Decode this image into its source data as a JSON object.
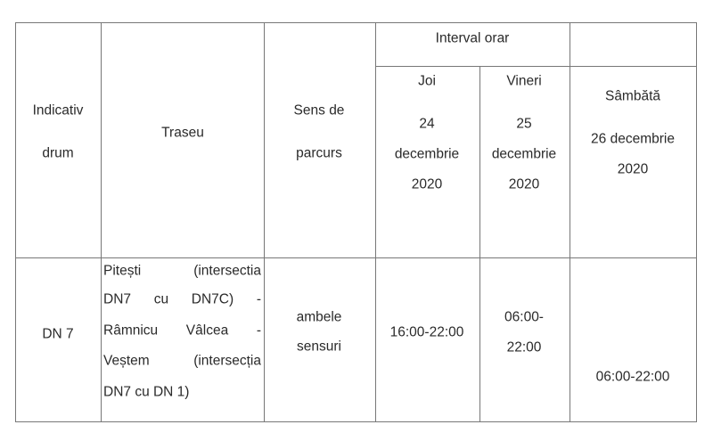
{
  "header": {
    "indicativ": [
      "Indicativ",
      "drum"
    ],
    "traseu": "Traseu",
    "sens": [
      "Sens de",
      "parcurs"
    ],
    "interval": "Interval orar",
    "joi": [
      "Joi",
      "24",
      "decembrie",
      "2020"
    ],
    "vineri": [
      "Vineri",
      "25",
      "decembrie",
      "2020"
    ],
    "sambata": [
      "Sâmbătă",
      "26 decembrie",
      "2020"
    ]
  },
  "row": {
    "indicativ": "DN 7",
    "traseu": [
      [
        "Pitești",
        "(intersectia"
      ],
      [
        "DN7",
        "cu",
        "DN7C)",
        "-"
      ],
      [
        "Râmnicu",
        "Vâlcea",
        "-"
      ],
      [
        "Veștem",
        "(intersecția"
      ],
      [
        "DN7 cu DN 1)"
      ]
    ],
    "sens": [
      "ambele",
      "sensuri"
    ],
    "joi": "16:00-22:00",
    "vineri": [
      "06:00-",
      "22:00"
    ],
    "sambata": "06:00-22:00"
  }
}
